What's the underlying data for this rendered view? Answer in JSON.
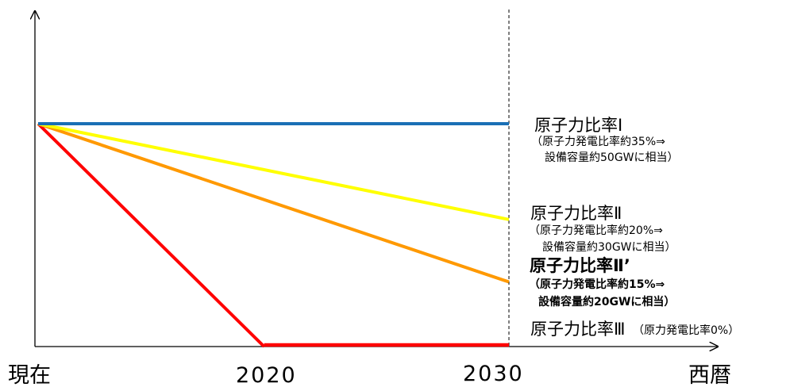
{
  "chart_data": {
    "type": "line",
    "x_tick_labels": [
      "現在",
      "2020",
      "2030",
      "西暦"
    ],
    "x": [
      0,
      0.5,
      1
    ],
    "series": [
      {
        "name": "原子力比率Ⅰ",
        "color": "#1a6fb5",
        "values": [
          1.0,
          1.0,
          1.0
        ]
      },
      {
        "name": "原子力比率Ⅱ",
        "color": "#ffff00",
        "values": [
          1.0,
          0.78,
          0.57
        ]
      },
      {
        "name": "原子力比率Ⅱ’",
        "color": "#ff9900",
        "values": [
          1.0,
          0.65,
          0.29
        ]
      },
      {
        "name": "原子力比率Ⅲ",
        "color": "#ff0000",
        "points": [
          [
            0,
            1.0
          ],
          [
            0.48,
            0.0
          ],
          [
            1,
            0.0
          ]
        ]
      }
    ],
    "annotations": [
      {
        "title": "原子力比率Ⅰ",
        "line1": "（原子力発電比率約35%⇒",
        "line2": "設備容量約50GWに相当）",
        "bold": false
      },
      {
        "title": "原子力比率Ⅱ",
        "line1": "（原子力発電比率約20%⇒",
        "line2": "設備容量約30GWに相当）",
        "bold": false
      },
      {
        "title": "原子力比率Ⅱ’",
        "line1": "（原子力発電比率約15%⇒",
        "line2": "設備容量約20GWに相当）",
        "bold": true
      },
      {
        "title": "原子力比率Ⅲ",
        "line1": "（原力発電比率0%）",
        "line2": "",
        "bold": false
      }
    ]
  }
}
